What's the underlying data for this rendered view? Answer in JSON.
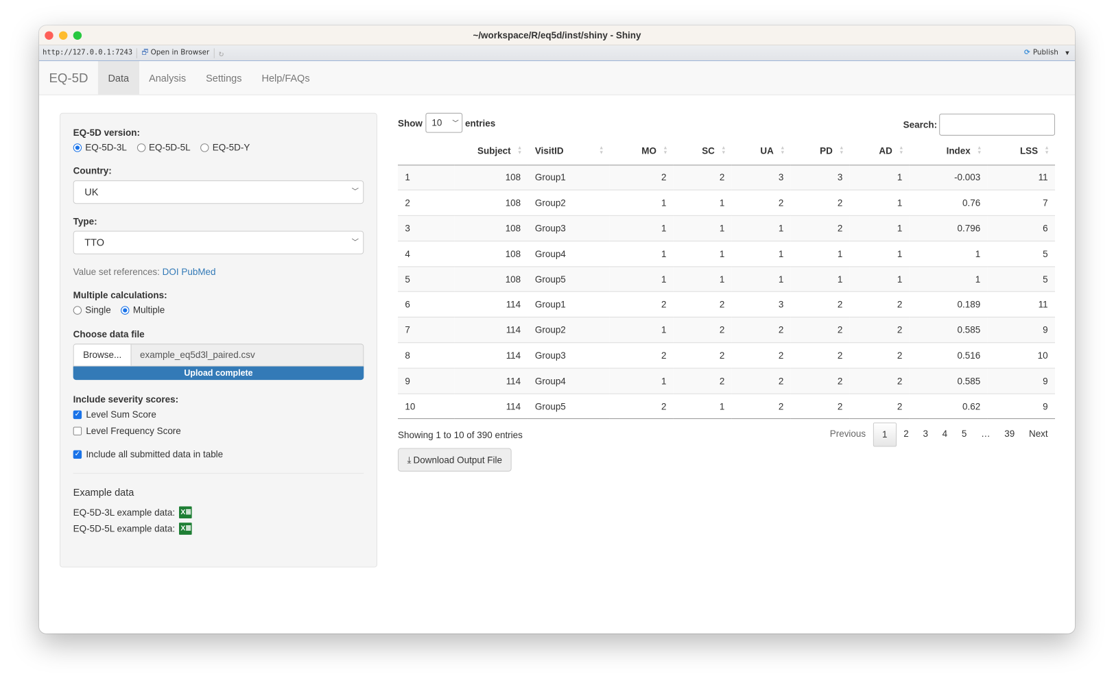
{
  "window": {
    "title": "~/workspace/R/eq5d/inst/shiny - Shiny",
    "url": "http://127.0.0.1:7243",
    "open_in_browser": "Open in Browser",
    "publish": "Publish"
  },
  "navbar": {
    "brand": "EQ-5D",
    "tabs": [
      {
        "label": "Data",
        "active": true
      },
      {
        "label": "Analysis"
      },
      {
        "label": "Settings"
      },
      {
        "label": "Help/FAQs"
      }
    ]
  },
  "sidebar": {
    "version_label": "EQ-5D version:",
    "versions": [
      "EQ-5D-3L",
      "EQ-5D-5L",
      "EQ-5D-Y"
    ],
    "version_selected": "EQ-5D-3L",
    "country_label": "Country:",
    "country": "UK",
    "type_label": "Type:",
    "type": "TTO",
    "refs_label": "Value set references:",
    "refs_doi": "DOI",
    "refs_pubmed": "PubMed",
    "multi_label": "Multiple calculations:",
    "multi_options": [
      "Single",
      "Multiple"
    ],
    "multi_selected": "Multiple",
    "file_label": "Choose data file",
    "browse": "Browse...",
    "file_name": "example_eq5d3l_paired.csv",
    "upload_status": "Upload complete",
    "upload_progress": 100,
    "severity_label": "Include severity scores:",
    "lss": "Level Sum Score",
    "lss_checked": true,
    "lfs": "Level Frequency Score",
    "lfs_checked": false,
    "include_all": "Include all submitted data in table",
    "include_all_checked": true,
    "example_label": "Example data",
    "example_3l": "EQ-5D-3L example data:",
    "example_5l": "EQ-5D-5L example data:"
  },
  "table": {
    "show": "Show",
    "length": "10",
    "entries": "entries",
    "search_label": "Search:",
    "search_value": "",
    "columns": [
      "",
      "Subject",
      "VisitID",
      "MO",
      "SC",
      "UA",
      "PD",
      "AD",
      "Index",
      "LSS"
    ],
    "rows": [
      [
        "1",
        "108",
        "Group1",
        "2",
        "2",
        "3",
        "3",
        "1",
        "-0.003",
        "11"
      ],
      [
        "2",
        "108",
        "Group2",
        "1",
        "1",
        "2",
        "2",
        "1",
        "0.76",
        "7"
      ],
      [
        "3",
        "108",
        "Group3",
        "1",
        "1",
        "1",
        "2",
        "1",
        "0.796",
        "6"
      ],
      [
        "4",
        "108",
        "Group4",
        "1",
        "1",
        "1",
        "1",
        "1",
        "1",
        "5"
      ],
      [
        "5",
        "108",
        "Group5",
        "1",
        "1",
        "1",
        "1",
        "1",
        "1",
        "5"
      ],
      [
        "6",
        "114",
        "Group1",
        "2",
        "2",
        "3",
        "2",
        "2",
        "0.189",
        "11"
      ],
      [
        "7",
        "114",
        "Group2",
        "1",
        "2",
        "2",
        "2",
        "2",
        "0.585",
        "9"
      ],
      [
        "8",
        "114",
        "Group3",
        "2",
        "2",
        "2",
        "2",
        "2",
        "0.516",
        "10"
      ],
      [
        "9",
        "114",
        "Group4",
        "1",
        "2",
        "2",
        "2",
        "2",
        "0.585",
        "9"
      ],
      [
        "10",
        "114",
        "Group5",
        "2",
        "1",
        "2",
        "2",
        "2",
        "0.62",
        "9"
      ]
    ],
    "info": "Showing 1 to 10 of 390 entries",
    "pagination": [
      "Previous",
      "1",
      "2",
      "3",
      "4",
      "5",
      "…",
      "39",
      "Next"
    ],
    "current_page": "1",
    "download": "Download Output File"
  }
}
